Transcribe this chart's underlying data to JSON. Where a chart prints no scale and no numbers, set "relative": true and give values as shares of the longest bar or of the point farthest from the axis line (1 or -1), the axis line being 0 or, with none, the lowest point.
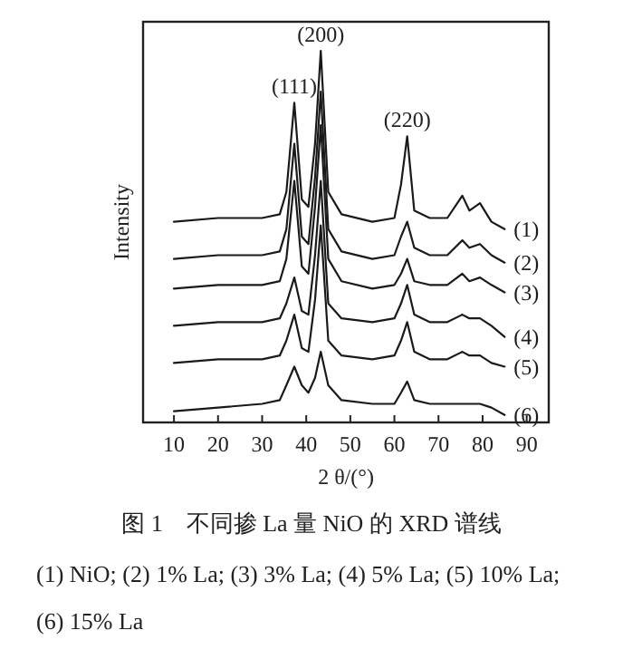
{
  "chart_data": {
    "type": "line",
    "relative": true,
    "title": "图 1　不同掺 La 量 NiO 的 XRD 谱线",
    "xlabel": "2 θ/(°)",
    "ylabel": "Intensity",
    "xlim": [
      3,
      95
    ],
    "xticks": [
      10,
      20,
      30,
      40,
      50,
      60,
      70,
      80,
      90
    ],
    "grid": false,
    "x": [
      10,
      20,
      30,
      34,
      35.5,
      37.3,
      39,
      40.5,
      42,
      43.3,
      45,
      48,
      55,
      60,
      61.5,
      62.9,
      64.5,
      68,
      72,
      75.4,
      77,
      79.4,
      82,
      85
    ],
    "series": [
      {
        "name": "(1)",
        "color": "#1a1a1a",
        "values": [
          0.54,
          0.55,
          0.55,
          0.56,
          0.62,
          0.86,
          0.6,
          0.58,
          0.75,
          1.0,
          0.62,
          0.56,
          0.54,
          0.55,
          0.64,
          0.77,
          0.57,
          0.55,
          0.55,
          0.61,
          0.57,
          0.59,
          0.54,
          0.52
        ]
      },
      {
        "name": "(2)",
        "color": "#1a1a1a",
        "values": [
          0.44,
          0.45,
          0.45,
          0.46,
          0.52,
          0.75,
          0.5,
          0.48,
          0.66,
          0.89,
          0.52,
          0.46,
          0.44,
          0.45,
          0.5,
          0.54,
          0.47,
          0.45,
          0.45,
          0.49,
          0.47,
          0.48,
          0.45,
          0.43
        ]
      },
      {
        "name": "(3)",
        "color": "#1a1a1a",
        "values": [
          0.36,
          0.37,
          0.37,
          0.38,
          0.44,
          0.65,
          0.42,
          0.4,
          0.58,
          0.8,
          0.44,
          0.38,
          0.36,
          0.37,
          0.4,
          0.44,
          0.38,
          0.37,
          0.37,
          0.4,
          0.38,
          0.39,
          0.37,
          0.35
        ]
      },
      {
        "name": "(4)",
        "color": "#1a1a1a",
        "values": [
          0.26,
          0.27,
          0.27,
          0.28,
          0.32,
          0.39,
          0.3,
          0.29,
          0.45,
          0.65,
          0.32,
          0.28,
          0.27,
          0.28,
          0.32,
          0.37,
          0.29,
          0.27,
          0.27,
          0.29,
          0.28,
          0.28,
          0.26,
          0.23
        ]
      },
      {
        "name": "(5)",
        "color": "#1a1a1a",
        "values": [
          0.16,
          0.17,
          0.17,
          0.18,
          0.22,
          0.29,
          0.2,
          0.19,
          0.33,
          0.53,
          0.22,
          0.18,
          0.17,
          0.18,
          0.22,
          0.27,
          0.19,
          0.17,
          0.17,
          0.19,
          0.18,
          0.18,
          0.16,
          0.15
        ]
      },
      {
        "name": "(6)",
        "color": "#1a1a1a",
        "values": [
          0.03,
          0.04,
          0.05,
          0.06,
          0.1,
          0.15,
          0.1,
          0.08,
          0.12,
          0.19,
          0.1,
          0.06,
          0.05,
          0.05,
          0.08,
          0.11,
          0.06,
          0.05,
          0.05,
          0.05,
          0.05,
          0.05,
          0.04,
          0.02
        ]
      }
    ],
    "annotations": [
      {
        "text": "(111)",
        "x": 37.3,
        "y": 0.86
      },
      {
        "text": "(200)",
        "x": 43.3,
        "y": 1.0
      },
      {
        "text": "(220)",
        "x": 62.9,
        "y": 0.77
      },
      "(1) NiO; (2) 1% La; (3) 3% La; (4) 5% La; (5) 10% La; (6) 15% La"
    ]
  }
}
